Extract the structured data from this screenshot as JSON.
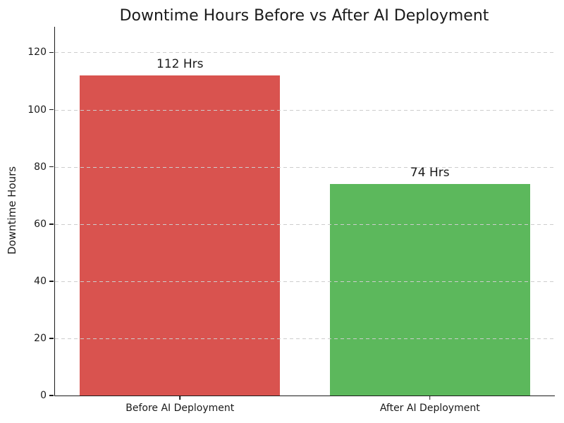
{
  "chart_data": {
    "type": "bar",
    "title": "Downtime Hours Before vs After AI Deployment",
    "xlabel": "",
    "ylabel": "Downtime Hours",
    "categories": [
      "Before AI Deployment",
      "After AI Deployment"
    ],
    "values": [
      112,
      74
    ],
    "value_labels": [
      "112 Hrs",
      "74 Hrs"
    ],
    "bar_colors": [
      "#d9534f",
      "#5cb85c"
    ],
    "yticks": [
      0,
      20,
      40,
      60,
      80,
      100,
      120
    ],
    "ylim": [
      0,
      129
    ],
    "bar_width_fraction": 0.8,
    "grid": "horizontal dashed gridlines drawn over bars",
    "grid_color": "#cdcdcd",
    "spine_color": "#1a1a1a",
    "text_color": "#1a1a1a",
    "background_color": "#ffffff",
    "legend": "none"
  }
}
